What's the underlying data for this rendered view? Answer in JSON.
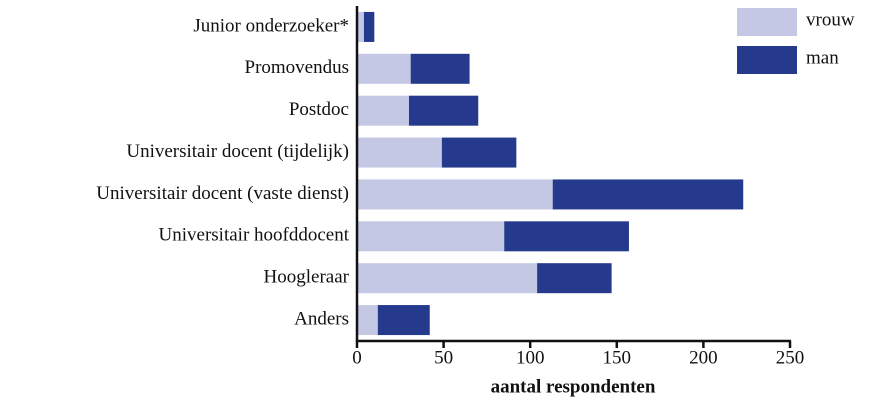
{
  "chart_data": {
    "type": "stacked-bar-horizontal",
    "xlabel": "aantal respondenten",
    "categories": [
      "Junior onderzoeker*",
      "Promovendus",
      "Postdoc",
      "Universitair docent (tijdelijk)",
      "Universitair docent (vaste dienst)",
      "Universitair hoofddocent",
      "Hoogleraar",
      "Anders"
    ],
    "series": [
      {
        "name": "vrouw",
        "color": "#c5c8e4",
        "values": [
          4,
          31,
          30,
          49,
          113,
          85,
          104,
          12
        ]
      },
      {
        "name": "man",
        "color": "#253a8c",
        "values": [
          6,
          34,
          40,
          43,
          110,
          72,
          43,
          30
        ]
      }
    ],
    "xlim": [
      0,
      250
    ],
    "xticks": [
      0,
      50,
      100,
      150,
      200,
      250
    ],
    "legend": "top-right"
  }
}
